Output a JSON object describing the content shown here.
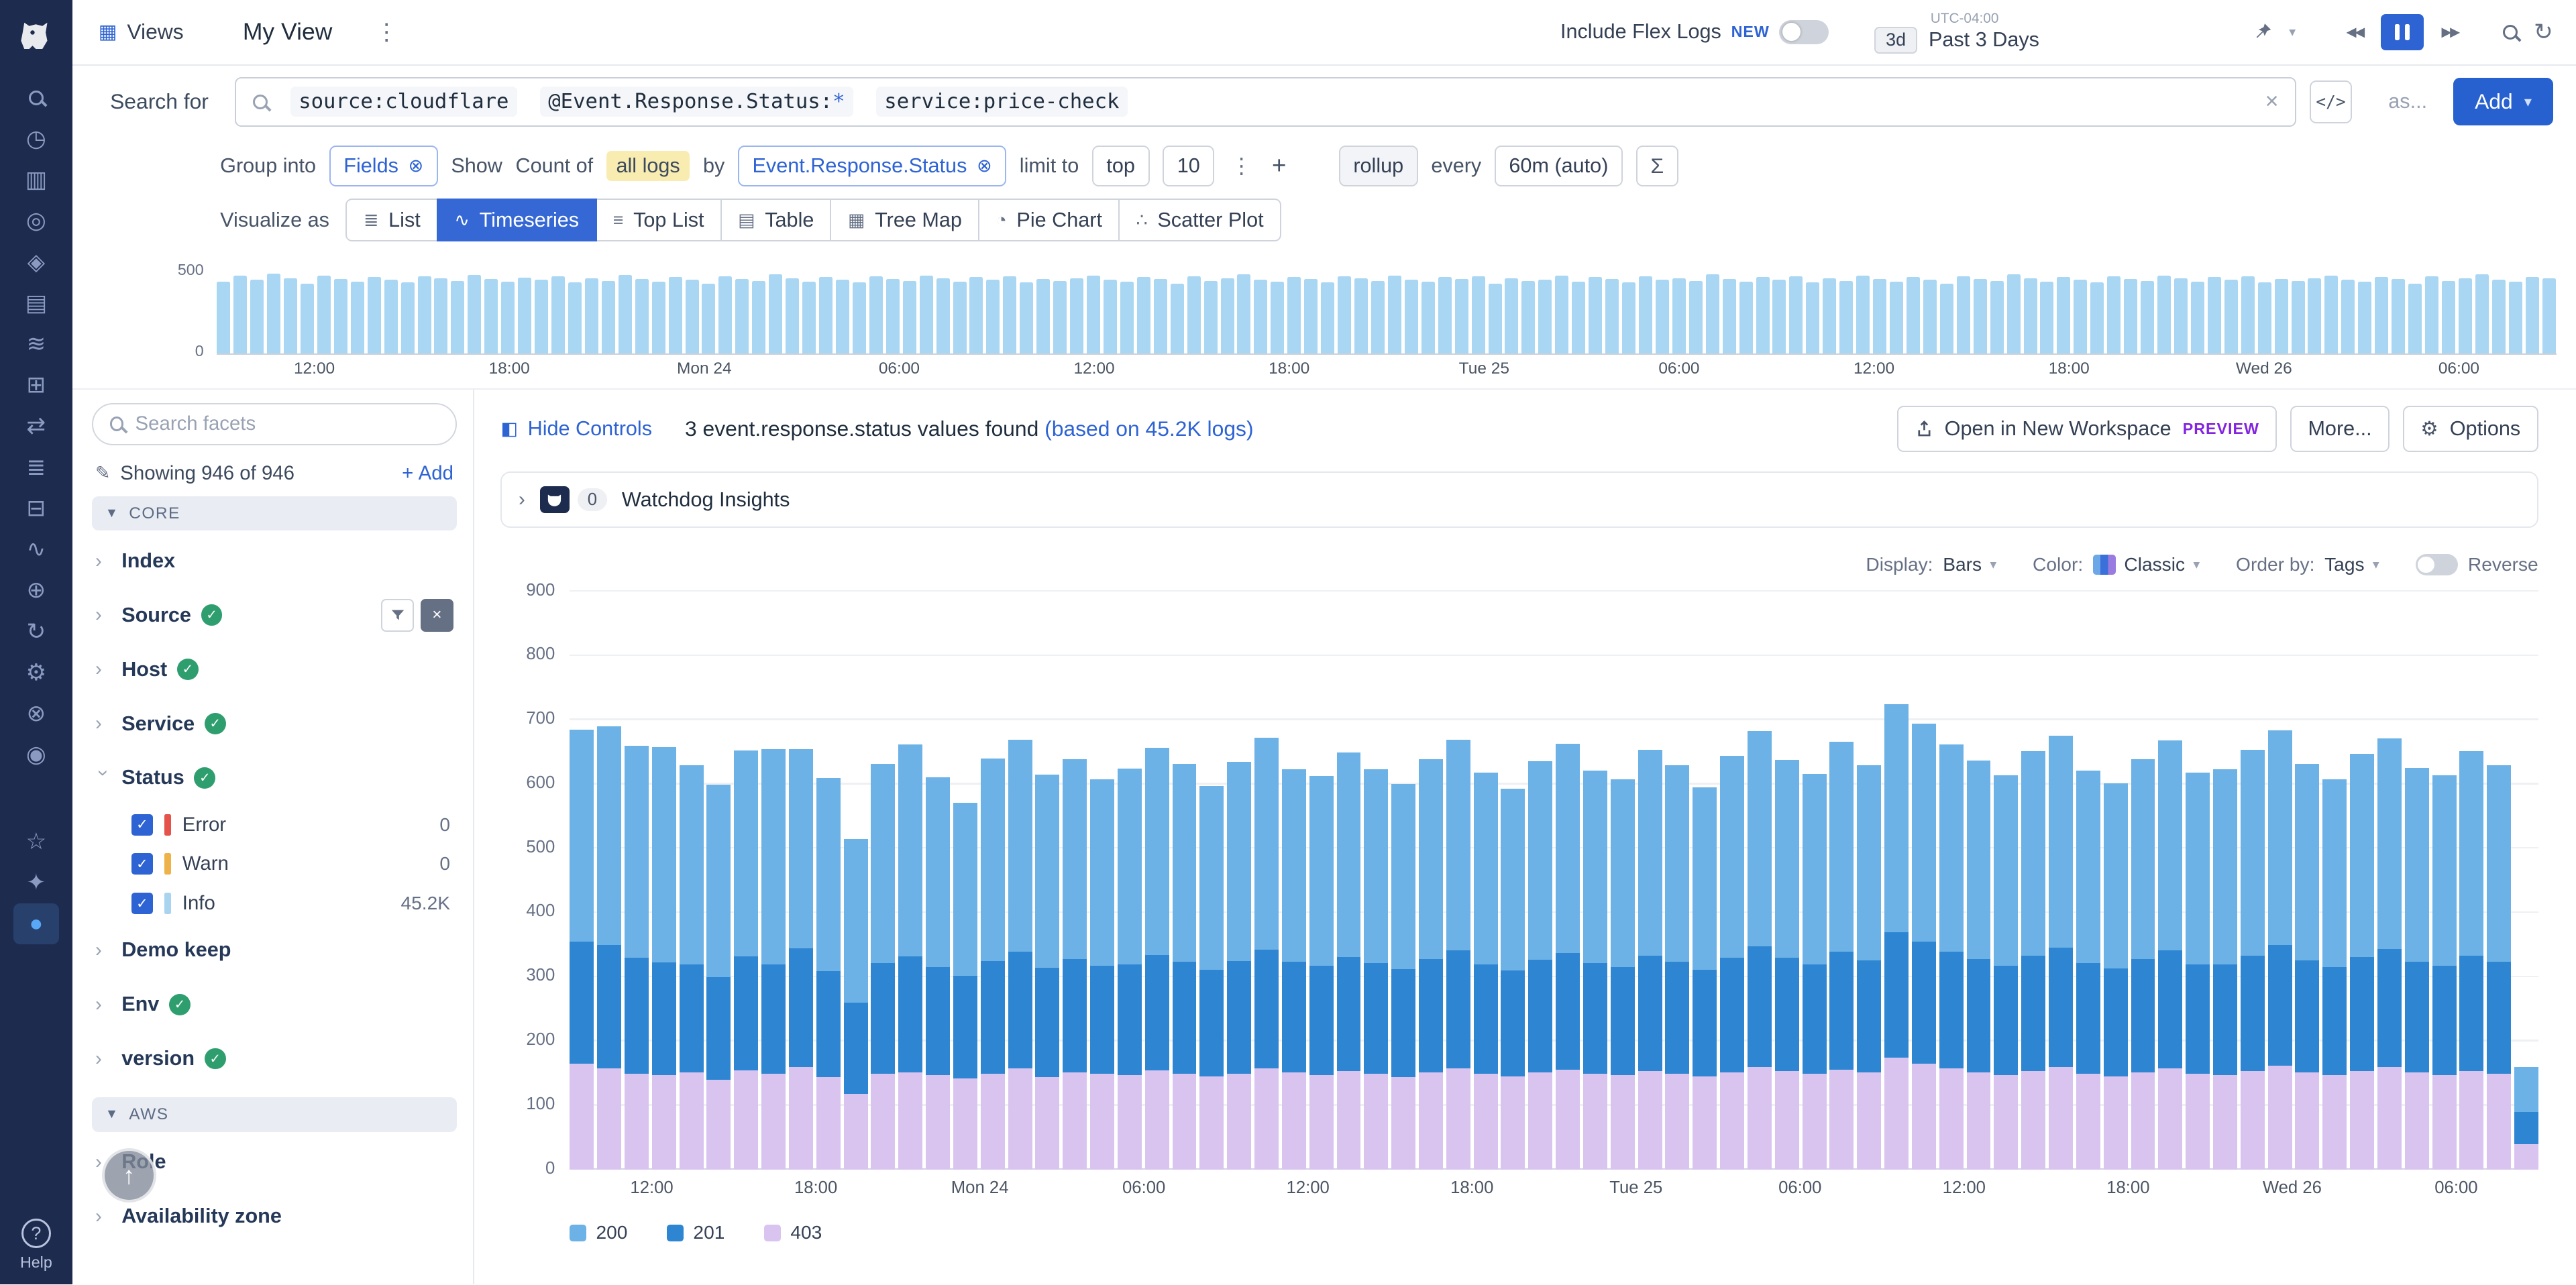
{
  "colors": {
    "accent": "#2e63d4",
    "rail_bg": "#1d2b4f",
    "mini_bar": "#a9d6f2"
  },
  "rail": {
    "help_label": "Help",
    "help_glyph": "?",
    "icons": [
      {
        "name": "search-icon",
        "glyph": "mag"
      },
      {
        "name": "history-icon",
        "glyph": "◷"
      },
      {
        "name": "metrics-icon",
        "glyph": "▥"
      },
      {
        "name": "monitors-icon",
        "glyph": "◎"
      },
      {
        "name": "security-icon",
        "glyph": "◈"
      },
      {
        "name": "infrastructure-icon",
        "glyph": "▤"
      },
      {
        "name": "pipelines-icon",
        "glyph": "≋"
      },
      {
        "name": "services-icon",
        "glyph": "⊞"
      },
      {
        "name": "workflows-icon",
        "glyph": "⇄"
      },
      {
        "name": "logs-icon",
        "glyph": "≣"
      },
      {
        "name": "terminal-icon",
        "glyph": "⊟"
      },
      {
        "name": "apm-icon",
        "glyph": "∿"
      },
      {
        "name": "integrations-icon",
        "glyph": "⊕"
      },
      {
        "name": "sync-icon",
        "glyph": "↻"
      },
      {
        "name": "settings-icon",
        "glyph": "⚙"
      },
      {
        "name": "tools-icon",
        "glyph": "⊗"
      },
      {
        "name": "watchdog-icon",
        "glyph": "◉"
      },
      {
        "name": "teams-icon",
        "glyph": "☆",
        "spacer": true
      },
      {
        "name": "sparkle-icon",
        "glyph": "✦"
      },
      {
        "name": "current-app-icon",
        "glyph": "●",
        "active": true
      }
    ]
  },
  "header": {
    "views_label": "Views",
    "title": "My View",
    "flex_logs_label": "Include Flex Logs",
    "new_badge": "NEW",
    "utc_label": "UTC-04:00",
    "range_short": "3d",
    "range_label": "Past 3 Days"
  },
  "search": {
    "label": "Search for",
    "tokens": [
      {
        "text": "source:cloudflare"
      },
      {
        "text": "@Event.Response.Status:",
        "suffix": "*"
      },
      {
        "text": "service:price-check"
      }
    ],
    "as_label": "as...",
    "add_label": "Add"
  },
  "query": {
    "group_into": "Group into",
    "group_value": "Fields",
    "show_label": "Show",
    "count_of": "Count of",
    "count_value": "all logs",
    "by_label": "by",
    "by_value": "Event.Response.Status",
    "limit_label": "limit to",
    "limit_order": "top",
    "limit_count": "10",
    "rollup_label": "rollup",
    "every_label": "every",
    "rollup_value": "60m (auto)",
    "sigma": "Σ"
  },
  "visualize": {
    "label": "Visualize as",
    "active": "Timeseries",
    "options": [
      {
        "label": "List",
        "icon": "≣"
      },
      {
        "label": "Timeseries",
        "icon": "∿"
      },
      {
        "label": "Top List",
        "icon": "≡"
      },
      {
        "label": "Table",
        "icon": "▤"
      },
      {
        "label": "Tree Map",
        "icon": "▦"
      },
      {
        "label": "Pie Chart",
        "icon": "◔"
      },
      {
        "label": "Scatter Plot",
        "icon": "∴"
      }
    ]
  },
  "facets": {
    "search_placeholder": "Search facets",
    "showing": "Showing 946 of 946",
    "add_label": "Add",
    "sections": [
      {
        "label": "CORE",
        "items": [
          {
            "label": "Index"
          },
          {
            "label": "Source",
            "checked": true,
            "controls": true
          },
          {
            "label": "Host",
            "checked": true
          },
          {
            "label": "Service",
            "checked": true
          },
          {
            "label": "Status",
            "checked": true,
            "expanded": true,
            "children": [
              {
                "label": "Error",
                "count": "0",
                "color": "#e5534b"
              },
              {
                "label": "Warn",
                "count": "0",
                "color": "#eeb24a"
              },
              {
                "label": "Info",
                "count": "45.2K",
                "color": "#a8d4f0"
              }
            ]
          },
          {
            "label": "Demo keep"
          },
          {
            "label": "Env",
            "checked": true
          },
          {
            "label": "version",
            "checked": true
          }
        ]
      },
      {
        "label": "AWS",
        "items": [
          {
            "label": "Role"
          },
          {
            "label": "Availability zone"
          }
        ]
      }
    ]
  },
  "results": {
    "hide_controls": "Hide Controls",
    "summary": "3 event.response.status values found",
    "based_on": "(based on 45.2K logs)",
    "open_workspace": "Open in New Workspace",
    "preview_badge": "PREVIEW",
    "more_label": "More...",
    "options_label": "Options"
  },
  "watchdog": {
    "count": "0",
    "label": "Watchdog Insights"
  },
  "chart_controls": {
    "display_label": "Display:",
    "display_value": "Bars",
    "color_label": "Color:",
    "color_value": "Classic",
    "order_label": "Order by:",
    "order_value": "Tags",
    "reverse_label": "Reverse"
  },
  "chart_data": [
    {
      "type": "bar",
      "title": "log volume timeline",
      "ylim": [
        0,
        500
      ],
      "yticks": [
        0,
        500
      ],
      "color": "#a9d6f2",
      "x_labels": [
        "12:00",
        "18:00",
        "Mon 24",
        "06:00",
        "12:00",
        "18:00",
        "Tue 25",
        "06:00",
        "12:00",
        "18:00",
        "Wed 26",
        "06:00"
      ],
      "values": [
        420,
        455,
        430,
        465,
        440,
        410,
        455,
        435,
        420,
        448,
        430,
        415,
        452,
        440,
        425,
        460,
        435,
        418,
        445,
        430,
        452,
        415,
        440,
        425,
        458,
        435,
        420,
        446,
        430,
        410,
        450,
        436,
        424,
        462,
        440,
        420,
        446,
        430,
        415,
        452,
        436,
        425,
        456,
        440,
        420,
        446,
        430,
        450,
        415,
        436,
        424,
        440,
        456,
        430,
        420,
        446,
        436,
        410,
        450,
        425,
        440,
        462,
        430,
        420,
        446,
        436,
        414,
        450,
        440,
        425,
        456,
        430,
        420,
        446,
        436,
        452,
        410,
        440,
        424,
        430,
        456,
        420,
        446,
        436,
        415,
        450,
        430,
        440,
        425,
        462,
        436,
        420,
        446,
        430,
        450,
        414,
        440,
        425,
        456,
        436,
        420,
        446,
        430,
        410,
        450,
        436,
        424,
        462,
        440,
        420,
        446,
        430,
        415,
        452,
        436,
        424,
        456,
        440,
        420,
        446,
        430,
        452,
        414,
        436,
        424,
        440,
        456,
        430,
        420,
        446,
        436,
        410,
        450,
        424,
        440,
        462,
        430,
        420,
        446,
        438
      ]
    },
    {
      "type": "bar",
      "stacked": true,
      "title": "count of all logs by event.response.status",
      "ylim": [
        0,
        900
      ],
      "yticks": [
        0,
        100,
        200,
        300,
        400,
        500,
        600,
        700,
        800,
        900
      ],
      "x_labels": [
        "12:00",
        "18:00",
        "Mon 24",
        "06:00",
        "12:00",
        "18:00",
        "Tue 25",
        "06:00",
        "12:00",
        "18:00",
        "Wed 26",
        "06:00"
      ],
      "series": [
        {
          "name": "403",
          "color": "#d9c4f0",
          "values": [
            165,
            158,
            150,
            148,
            152,
            140,
            155,
            150,
            160,
            145,
            118,
            150,
            152,
            148,
            142,
            150,
            158,
            145,
            152,
            150,
            148,
            155,
            150,
            146,
            150,
            158,
            152,
            148,
            154,
            150,
            145,
            152,
            158,
            150,
            146,
            152,
            156,
            150,
            148,
            154,
            150,
            146,
            152,
            160,
            154,
            150,
            156,
            152,
            175,
            165,
            158,
            152,
            148,
            154,
            160,
            150,
            146,
            152,
            158,
            150,
            148,
            154,
            162,
            152,
            148,
            154,
            160,
            152,
            148,
            154,
            150,
            40
          ]
        },
        {
          "name": "201",
          "color": "#2e86d2",
          "values": [
            190,
            192,
            180,
            175,
            168,
            160,
            178,
            170,
            185,
            165,
            142,
            172,
            180,
            168,
            160,
            175,
            182,
            170,
            176,
            168,
            172,
            180,
            174,
            166,
            175,
            185,
            172,
            170,
            178,
            172,
            168,
            176,
            184,
            170,
            165,
            175,
            182,
            172,
            168,
            180,
            174,
            166,
            178,
            188,
            176,
            170,
            184,
            174,
            195,
            190,
            182,
            176,
            170,
            180,
            186,
            172,
            168,
            176,
            184,
            170,
            172,
            180,
            188,
            174,
            168,
            178,
            184,
            172,
            170,
            180,
            174,
            50
          ]
        },
        {
          "name": "200",
          "color": "#6cb2e6",
          "values": [
            330,
            340,
            330,
            335,
            310,
            300,
            320,
            335,
            310,
            300,
            255,
            310,
            330,
            295,
            270,
            315,
            330,
            300,
            312,
            290,
            305,
            322,
            308,
            286,
            310,
            330,
            300,
            295,
            318,
            302,
            288,
            312,
            328,
            298,
            282,
            310,
            325,
            300,
            292,
            320,
            306,
            284,
            315,
            335,
            308,
            296,
            326,
            304,
            355,
            340,
            322,
            310,
            296,
            318,
            330,
            300,
            288,
            312,
            326,
            298,
            304,
            320,
            334,
            306,
            292,
            316,
            328,
            302,
            296,
            318,
            306,
            70
          ]
        }
      ],
      "legend": [
        {
          "label": "200",
          "color": "#6cb2e6"
        },
        {
          "label": "201",
          "color": "#2e86d2"
        },
        {
          "label": "403",
          "color": "#d9c4f0"
        }
      ]
    }
  ]
}
